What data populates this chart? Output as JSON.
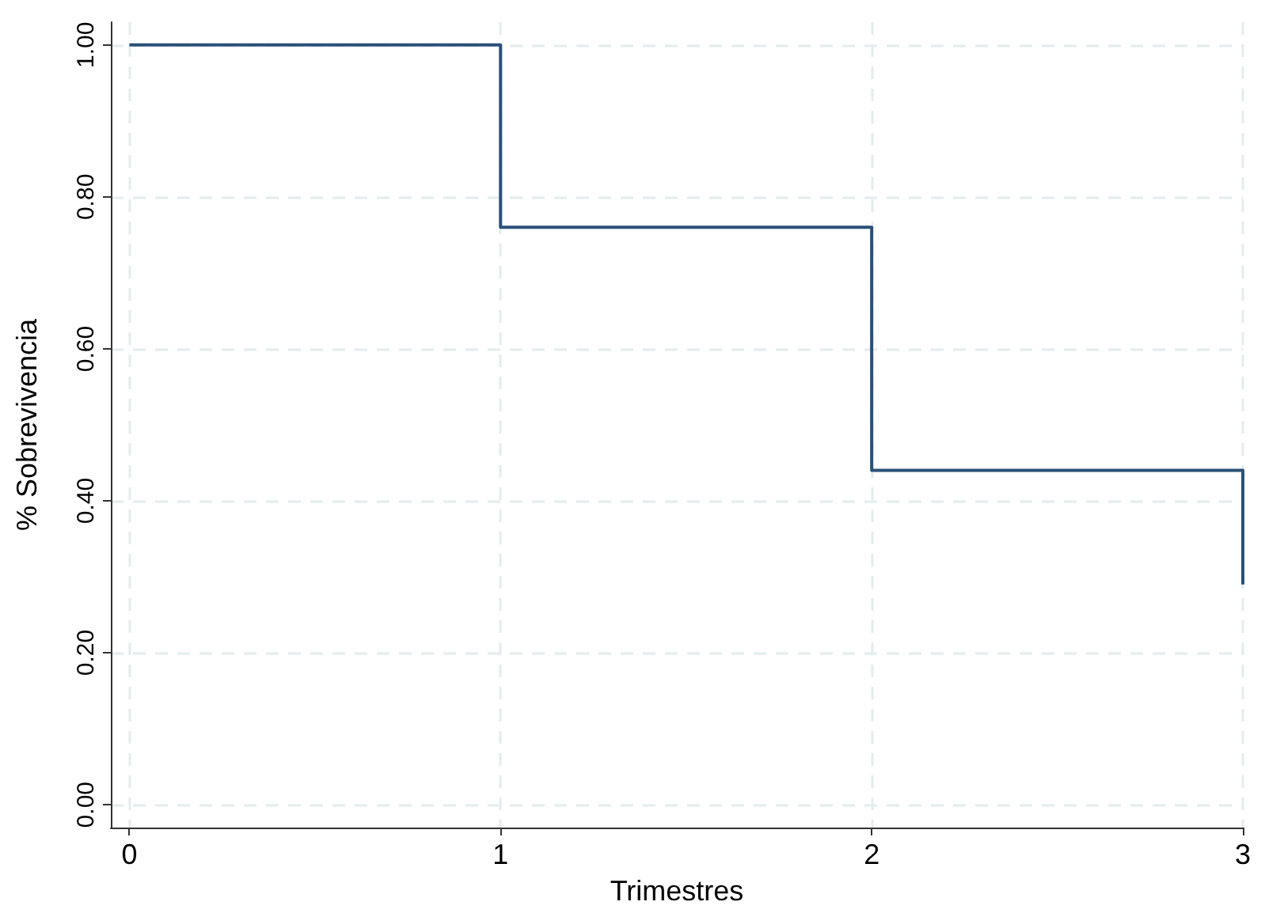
{
  "chart_data": {
    "type": "step",
    "xlabel": "Trimestres",
    "ylabel": "% Sobrevivencia",
    "x": [
      0,
      1,
      2,
      3
    ],
    "values": [
      1.0,
      0.76,
      0.44,
      0.29
    ],
    "color": "#2b5079",
    "xlim": [
      -0.05,
      3
    ],
    "xticks": [
      0,
      1,
      2,
      3
    ],
    "ylim": [
      -0.03,
      1.03
    ],
    "yticks": [
      {
        "value": 0,
        "label": "0.00"
      },
      {
        "value": 0.2,
        "label": "0.20"
      },
      {
        "value": 0.4,
        "label": "0.40"
      },
      {
        "value": 0.6,
        "label": "0.60"
      },
      {
        "value": 0.8,
        "label": "0.80"
      },
      {
        "value": 1,
        "label": "1.00"
      }
    ],
    "grid": true,
    "marker": "none",
    "line_style": "solid"
  }
}
